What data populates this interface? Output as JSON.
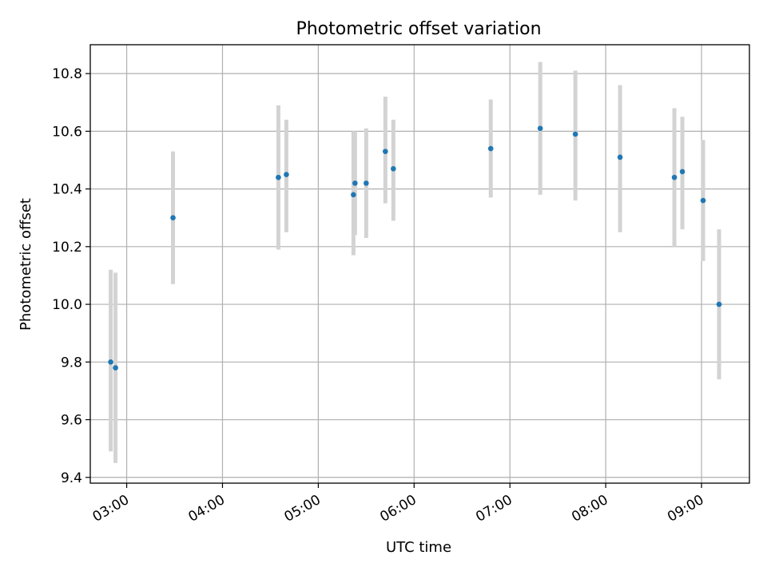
{
  "chart_data": {
    "type": "scatter",
    "title": "Photometric offset variation",
    "xlabel": "UTC time",
    "ylabel": "Photometric offset",
    "x_unit": "hours UTC",
    "xlim": [
      2.62,
      9.5
    ],
    "ylim": [
      9.38,
      10.9
    ],
    "xticks": [
      3,
      4,
      5,
      6,
      7,
      8,
      9
    ],
    "xtick_labels": [
      "03:00",
      "04:00",
      "05:00",
      "06:00",
      "07:00",
      "08:00",
      "09:00"
    ],
    "yticks": [
      9.4,
      9.6,
      9.8,
      10.0,
      10.2,
      10.4,
      10.6,
      10.8
    ],
    "ytick_labels": [
      "9.4",
      "9.6",
      "9.8",
      "10.0",
      "10.2",
      "10.4",
      "10.6",
      "10.8"
    ],
    "grid": true,
    "marker_color": "#1f77b4",
    "errorbar_color": "#d3d3d3",
    "points": [
      {
        "time": "02:50",
        "y": 9.8,
        "lo": 9.49,
        "hi": 10.12
      },
      {
        "time": "02:53",
        "y": 9.78,
        "lo": 9.45,
        "hi": 10.11
      },
      {
        "time": "03:29",
        "y": 10.3,
        "lo": 10.07,
        "hi": 10.53
      },
      {
        "time": "04:35",
        "y": 10.44,
        "lo": 10.19,
        "hi": 10.69
      },
      {
        "time": "04:40",
        "y": 10.45,
        "lo": 10.25,
        "hi": 10.64
      },
      {
        "time": "05:22",
        "y": 10.38,
        "lo": 10.17,
        "hi": 10.6
      },
      {
        "time": "05:23",
        "y": 10.42,
        "lo": 10.24,
        "hi": 10.6
      },
      {
        "time": "05:30",
        "y": 10.42,
        "lo": 10.23,
        "hi": 10.61
      },
      {
        "time": "05:42",
        "y": 10.53,
        "lo": 10.35,
        "hi": 10.72
      },
      {
        "time": "05:47",
        "y": 10.47,
        "lo": 10.29,
        "hi": 10.64
      },
      {
        "time": "06:48",
        "y": 10.54,
        "lo": 10.37,
        "hi": 10.71
      },
      {
        "time": "07:19",
        "y": 10.61,
        "lo": 10.38,
        "hi": 10.84
      },
      {
        "time": "07:41",
        "y": 10.59,
        "lo": 10.36,
        "hi": 10.81
      },
      {
        "time": "08:09",
        "y": 10.51,
        "lo": 10.25,
        "hi": 10.76
      },
      {
        "time": "08:43",
        "y": 10.44,
        "lo": 10.2,
        "hi": 10.68
      },
      {
        "time": "08:48",
        "y": 10.46,
        "lo": 10.26,
        "hi": 10.65
      },
      {
        "time": "09:01",
        "y": 10.36,
        "lo": 10.15,
        "hi": 10.57
      },
      {
        "time": "09:11",
        "y": 10.0,
        "lo": 9.74,
        "hi": 10.26
      }
    ]
  }
}
